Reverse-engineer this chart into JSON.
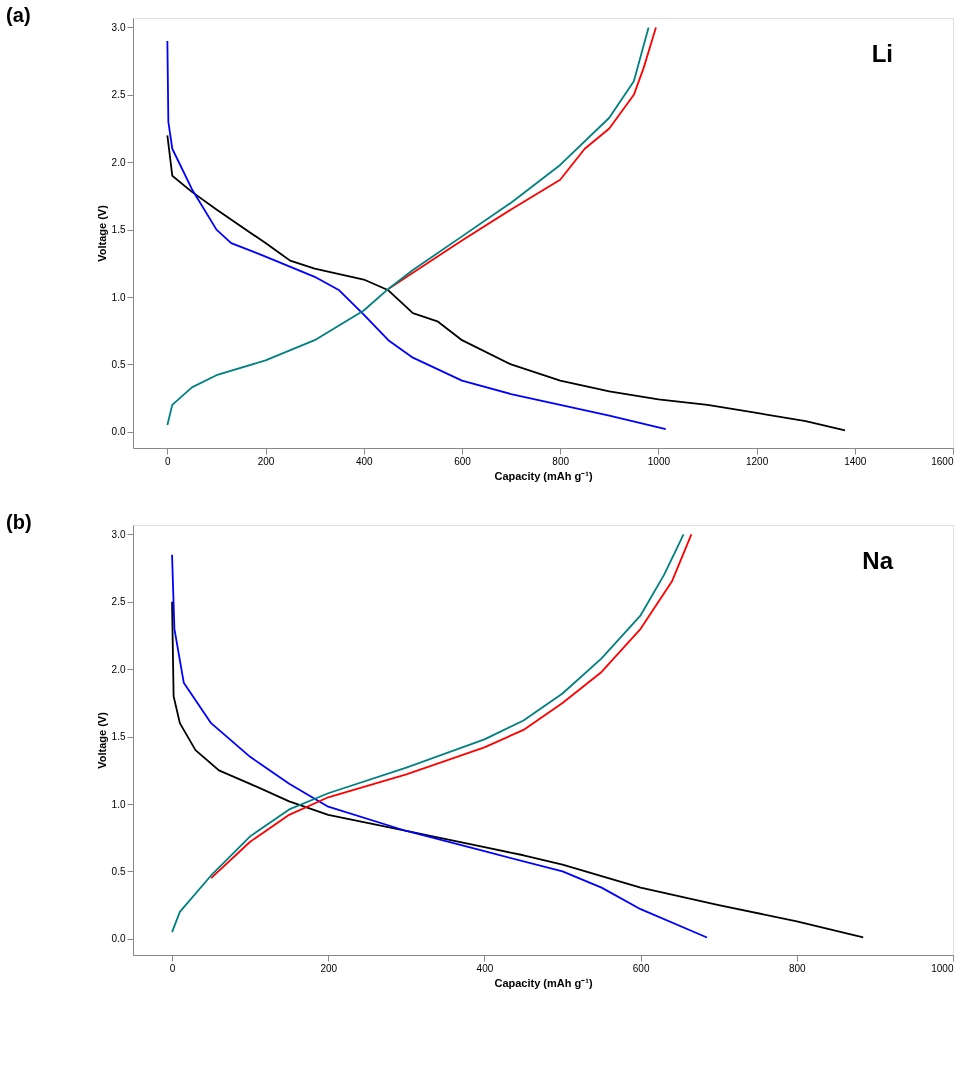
{
  "chart_data": [
    {
      "type": "line",
      "title": "(a)",
      "annotations": [
        "Li"
      ],
      "xlabel": "Capacity (mAh g⁻¹)",
      "ylabel": "Voltage (V)",
      "xlim": [
        -70,
        1600
      ],
      "ylim": [
        -0.12,
        3.07
      ],
      "xticks": [
        0,
        200,
        400,
        600,
        800,
        1000,
        1200,
        1400,
        1600
      ],
      "yticks": [
        {
          "value": 0,
          "label": "0.0"
        },
        0.5,
        {
          "value": 1,
          "label": "1.0"
        },
        1.5,
        {
          "value": 2,
          "label": "2.0"
        },
        2.5,
        {
          "value": 3,
          "label": "3.0"
        }
      ],
      "series": [
        {
          "color": "#000000",
          "x": [
            0,
            10,
            50,
            100,
            200,
            250,
            300,
            400,
            450,
            500,
            550,
            600,
            700,
            800,
            900,
            1000,
            1100,
            1200,
            1300,
            1380
          ],
          "values": [
            2.2,
            1.9,
            1.78,
            1.65,
            1.4,
            1.27,
            1.21,
            1.13,
            1.05,
            0.88,
            0.82,
            0.68,
            0.5,
            0.38,
            0.3,
            0.24,
            0.2,
            0.14,
            0.08,
            0.01
          ]
        },
        {
          "color": "#0000ff",
          "x": [
            0,
            2,
            10,
            50,
            100,
            130,
            200,
            300,
            350,
            400,
            450,
            500,
            600,
            700,
            800,
            900,
            1015
          ],
          "values": [
            2.9,
            2.3,
            2.1,
            1.8,
            1.5,
            1.4,
            1.3,
            1.15,
            1.05,
            0.87,
            0.68,
            0.55,
            0.38,
            0.28,
            0.2,
            0.12,
            0.02
          ]
        },
        {
          "color": "#ff0000",
          "x": [
            450,
            500,
            600,
            700,
            800,
            850,
            900,
            950,
            970,
            995
          ],
          "values": [
            1.06,
            1.18,
            1.42,
            1.65,
            1.87,
            2.1,
            2.25,
            2.5,
            2.7,
            3.0
          ]
        },
        {
          "color": "#008080",
          "x": [
            0,
            10,
            50,
            100,
            200,
            300,
            400,
            450,
            500,
            600,
            700,
            800,
            900,
            950,
            980
          ],
          "values": [
            0.05,
            0.2,
            0.33,
            0.42,
            0.53,
            0.68,
            0.9,
            1.06,
            1.2,
            1.45,
            1.7,
            1.98,
            2.33,
            2.6,
            3.0
          ]
        }
      ]
    },
    {
      "type": "line",
      "title": "(b)",
      "annotations": [
        "Na"
      ],
      "xlabel": "Capacity (mAh g⁻¹)",
      "ylabel": "Voltage (V)",
      "xlim": [
        -50,
        1000
      ],
      "ylim": [
        -0.12,
        3.07
      ],
      "xticks": [
        0,
        200,
        400,
        600,
        800,
        1000
      ],
      "yticks": [
        {
          "value": 0,
          "label": "0.0"
        },
        0.5,
        {
          "value": 1,
          "label": "1.0"
        },
        1.5,
        {
          "value": 2,
          "label": "2.0"
        },
        2.5,
        {
          "value": 3,
          "label": "3.0"
        }
      ],
      "series": [
        {
          "color": "#000000",
          "x": [
            0,
            2,
            10,
            30,
            60,
            100,
            150,
            200,
            300,
            400,
            450,
            500,
            600,
            700,
            800,
            885
          ],
          "values": [
            2.5,
            1.8,
            1.6,
            1.4,
            1.25,
            1.15,
            1.02,
            0.92,
            0.8,
            0.68,
            0.62,
            0.55,
            0.38,
            0.25,
            0.13,
            0.01
          ]
        },
        {
          "color": "#0000ff",
          "x": [
            0,
            3,
            15,
            50,
            100,
            150,
            200,
            300,
            400,
            500,
            550,
            600,
            685
          ],
          "values": [
            2.85,
            2.3,
            1.9,
            1.6,
            1.35,
            1.15,
            0.98,
            0.8,
            0.65,
            0.5,
            0.38,
            0.22,
            0.01
          ]
        },
        {
          "color": "#ff0000",
          "x": [
            50,
            100,
            150,
            200,
            300,
            400,
            450,
            500,
            550,
            600,
            640,
            665
          ],
          "values": [
            0.45,
            0.72,
            0.92,
            1.05,
            1.22,
            1.42,
            1.55,
            1.75,
            1.98,
            2.3,
            2.65,
            3.0
          ]
        },
        {
          "color": "#008080",
          "x": [
            0,
            10,
            50,
            100,
            150,
            200,
            300,
            400,
            450,
            500,
            550,
            600,
            630,
            655
          ],
          "values": [
            0.05,
            0.2,
            0.47,
            0.76,
            0.96,
            1.08,
            1.27,
            1.48,
            1.62,
            1.82,
            2.08,
            2.4,
            2.7,
            3.0
          ]
        }
      ]
    }
  ]
}
